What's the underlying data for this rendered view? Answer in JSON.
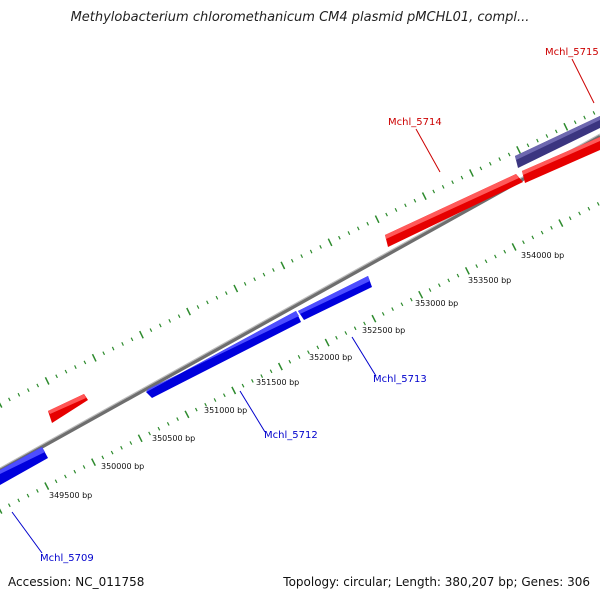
{
  "title": "Methylobacterium chloromethanicum CM4 plasmid pMCHL01, compl...",
  "footer": {
    "accession": "Accession: NC_011758",
    "summary": "Topology: circular; Length: 380,207 bp; Genes: 306"
  },
  "colors": {
    "forward_gene": "#ff0000",
    "reverse_gene": "#0000ff",
    "other_gene": "#483d8b",
    "backbone": "#888888",
    "ticks": "#2e8b2e",
    "forward_label": "#cc0000",
    "reverse_label": "#0000cc"
  },
  "scale_labels": [
    "349500 bp",
    "350000 bp",
    "350500 bp",
    "351000 bp",
    "351500 bp",
    "352000 bp",
    "352500 bp",
    "353000 bp",
    "353500 bp",
    "354000 bp"
  ],
  "gene_labels": [
    {
      "id": "g5709",
      "text": "Mchl_5709",
      "strand": "reverse"
    },
    {
      "id": "g5712",
      "text": "Mchl_5712",
      "strand": "reverse"
    },
    {
      "id": "g5713",
      "text": "Mchl_5713",
      "strand": "reverse"
    },
    {
      "id": "g5714",
      "text": "Mchl_5714",
      "strand": "forward"
    },
    {
      "id": "g5715",
      "text": "Mchl_5715",
      "strand": "forward"
    }
  ]
}
